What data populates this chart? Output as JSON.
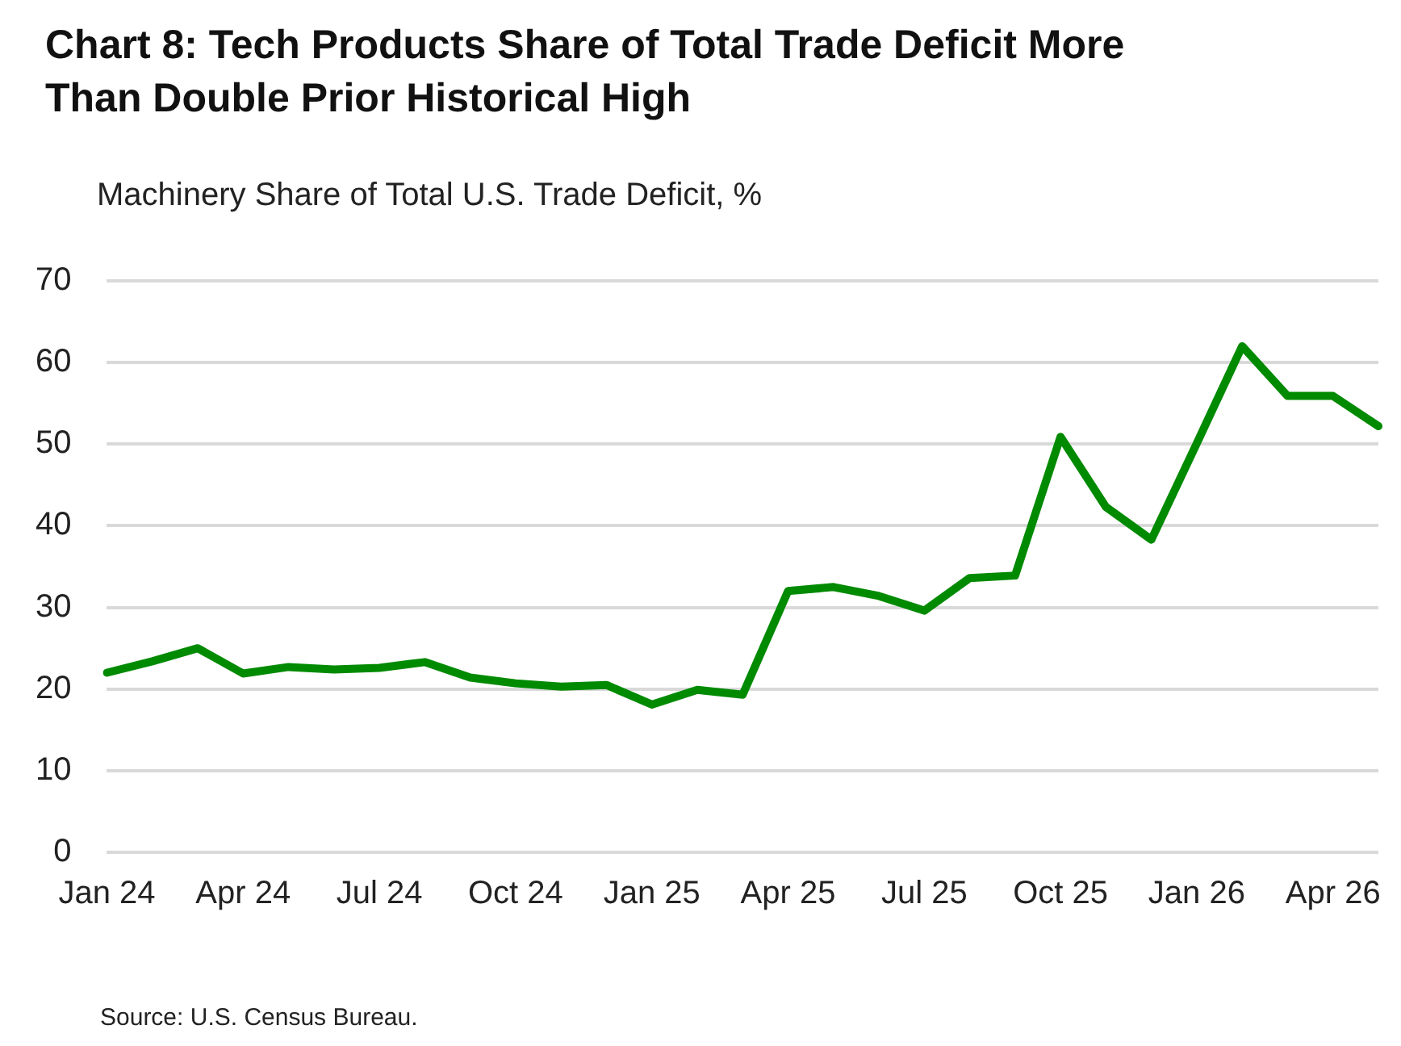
{
  "chart_data": {
    "type": "line",
    "title": "Chart 8: Tech Products Share of Total Trade Deficit More Than Double Prior Historical High",
    "ylabel": "Machinery Share of Total U.S. Trade Deficit, %",
    "annotations": [
      "Source: U.S. Census Bureau."
    ],
    "categories": [
      "Jan 24",
      null,
      null,
      "Apr 24",
      null,
      null,
      "Jul 24",
      null,
      null,
      "Oct 24",
      null,
      null,
      "Jan 25",
      null,
      null,
      "Apr 25",
      null,
      null,
      "Jul 25",
      null,
      null,
      "Oct 25",
      null,
      null,
      "Jan 26",
      null,
      null,
      "Apr 26",
      null
    ],
    "series": [
      {
        "color": "#008a00",
        "values": [
          22,
          23.4,
          25,
          21.9,
          22.7,
          22.4,
          22.6,
          23.3,
          21.4,
          20.7,
          20.3,
          20.5,
          18.1,
          19.9,
          19.3,
          32,
          32.5,
          31.4,
          29.6,
          33.6,
          33.9,
          50.9,
          42.3,
          38.3,
          50.1,
          62,
          55.9,
          55.9,
          52.2
        ]
      }
    ],
    "ylim": [
      0,
      70
    ],
    "yticks": [
      0,
      10,
      20,
      30,
      40,
      50,
      60,
      70
    ],
    "grid": "y",
    "legend": false,
    "marker": "none",
    "line_style": "solid"
  }
}
